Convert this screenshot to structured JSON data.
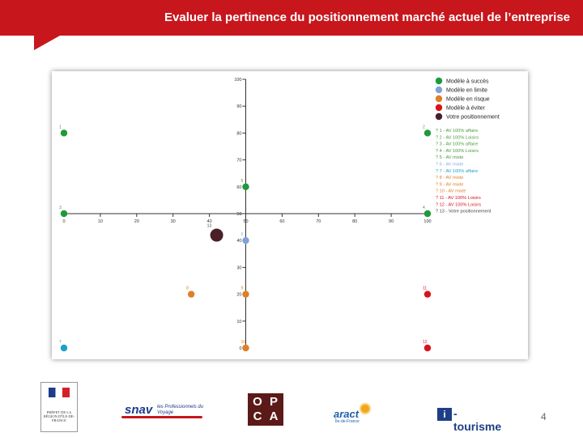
{
  "header": {
    "title": "Evaluer la pertinence du positionnement marché actuel de l’entreprise"
  },
  "page_number": "4",
  "colors": {
    "banner": "#c8161d",
    "succes": "#1e9a3c",
    "limite": "#7fa3d6",
    "risque": "#e07f28",
    "eviter": "#d7141c",
    "votre": "#4a1f28",
    "teal": "#1aa3c7"
  },
  "logos": {
    "prefet": "PRÉFET DE LA RÉGION D'ÎLE-DE-FRANCE",
    "snav": "snav",
    "snav_sub": "les Professionnels du Voyage",
    "opca": [
      "O",
      "P",
      "C",
      "A"
    ],
    "aract": "aract",
    "aract_sub": "Île-de-France",
    "itourisme_i": "i",
    "itourisme": "-tourisme"
  },
  "chart_data": {
    "type": "scatter",
    "x_ticks": [
      0,
      10,
      20,
      30,
      40,
      50,
      60,
      70,
      80,
      90,
      100
    ],
    "y_ticks": [
      0,
      10,
      20,
      30,
      40,
      50,
      60,
      70,
      80,
      90,
      100
    ],
    "xlim": [
      0,
      100
    ],
    "ylim": [
      0,
      100
    ],
    "axes_cross_at": {
      "x": 50,
      "y": 50
    },
    "legend_placement": "top-right",
    "legend_categories": [
      {
        "label": "Modèle à succès",
        "color": "#1e9a3c"
      },
      {
        "label": "Modèle en limite",
        "color": "#7fa3d6"
      },
      {
        "label": "Modèle en risque",
        "color": "#e07f28"
      },
      {
        "label": "Modèle à éviter",
        "color": "#d7141c"
      },
      {
        "label": "Votre positionnement",
        "color": "#4a1f28"
      }
    ],
    "points": [
      {
        "id": "1",
        "x": 0,
        "y": 80,
        "color": "#1e9a3c",
        "size": "small",
        "legend": "? 1 - AV 100% affaire",
        "label_color": "#4a9a3c"
      },
      {
        "id": "2",
        "x": 100,
        "y": 80,
        "color": "#1e9a3c",
        "size": "small",
        "legend": "? 2 - AV 100% Loisirs",
        "label_color": "#4a9a3c"
      },
      {
        "id": "3",
        "x": 0,
        "y": 50,
        "color": "#1e9a3c",
        "size": "small",
        "legend": "? 3 - AV 100% affaire",
        "label_color": "#4a9a3c"
      },
      {
        "id": "4",
        "x": 100,
        "y": 50,
        "color": "#1e9a3c",
        "size": "small",
        "legend": "? 4 - AV 100% Loisirs",
        "label_color": "#4a9a3c"
      },
      {
        "id": "5",
        "x": 50,
        "y": 60,
        "color": "#1e9a3c",
        "size": "small",
        "legend": "? 5 - AV mixte",
        "label_color": "#4a9a3c"
      },
      {
        "id": "6",
        "x": 50,
        "y": 40,
        "color": "#7fa3d6",
        "size": "small",
        "legend": "? 6 - AV mixte",
        "label_color": "#8aaedc"
      },
      {
        "id": "7",
        "x": 0,
        "y": 0,
        "color": "#1aa3c7",
        "size": "small",
        "legend": "? 7 - AV 100% affaire",
        "label_color": "#1aa3c7"
      },
      {
        "id": "8",
        "x": 35,
        "y": 20,
        "color": "#e07f28",
        "size": "small",
        "legend": "? 8 - AV mixte",
        "label_color": "#e07f28"
      },
      {
        "id": "9",
        "x": 50,
        "y": 20,
        "color": "#e07f28",
        "size": "small",
        "legend": "? 9 - AV mixte",
        "label_color": "#e07f28"
      },
      {
        "id": "10",
        "x": 50,
        "y": 0,
        "color": "#e07f28",
        "size": "small",
        "legend": "? 10 - AV mixte",
        "label_color": "#e07f28"
      },
      {
        "id": "11",
        "x": 100,
        "y": 20,
        "color": "#d7141c",
        "size": "small",
        "legend": "? 11 - AV 100% Loisirs",
        "label_color": "#d7141c"
      },
      {
        "id": "12",
        "x": 100,
        "y": 0,
        "color": "#d7141c",
        "size": "small",
        "legend": "? 12 - AV 100% Loisirs",
        "label_color": "#d7141c"
      },
      {
        "id": "13",
        "x": 42,
        "y": 42,
        "color": "#4a1f28",
        "size": "large",
        "legend": "? 13 - Votre positionnement",
        "label_color": "#444444"
      }
    ]
  }
}
